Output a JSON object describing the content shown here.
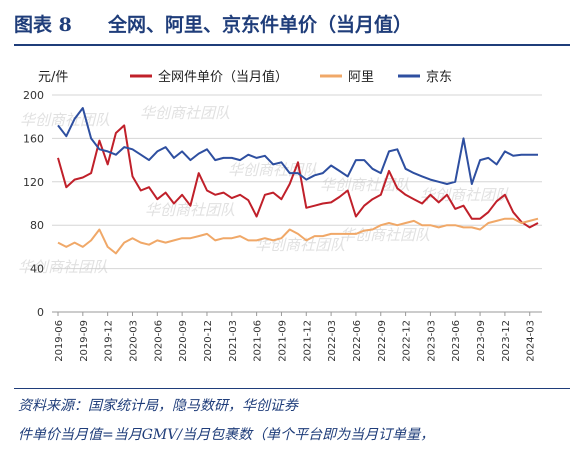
{
  "header": {
    "figure_label": "图表 8",
    "title": "全网、阿里、京东件单价（当月值）"
  },
  "footer": {
    "source": "资料来源：国家统计局，隐马数研，华创证券",
    "note": "件单价当月值=当月GMV/当月包裹数（单个平台即为当月订单量，"
  },
  "watermark": "华创商社团队",
  "chart_data": {
    "type": "line",
    "unit_label": "元/件",
    "ylim": [
      0,
      200
    ],
    "y_ticks": [
      0,
      40,
      80,
      120,
      160,
      200
    ],
    "x_tick_labels": [
      "2019-06",
      "2019-09",
      "2019-12",
      "2020-03",
      "2020-06",
      "2020-09",
      "2020-12",
      "2021-03",
      "2021-06",
      "2021-09",
      "2021-12",
      "2022-03",
      "2022-06",
      "2022-09",
      "2022-12",
      "2023-03",
      "2023-06",
      "2023-09",
      "2023-12",
      "2024-03"
    ],
    "x": [
      "2019-06",
      "2019-07",
      "2019-08",
      "2019-09",
      "2019-10",
      "2019-11",
      "2019-12",
      "2020-01",
      "2020-02",
      "2020-03",
      "2020-04",
      "2020-05",
      "2020-06",
      "2020-07",
      "2020-08",
      "2020-09",
      "2020-10",
      "2020-11",
      "2020-12",
      "2021-01",
      "2021-02",
      "2021-03",
      "2021-04",
      "2021-05",
      "2021-06",
      "2021-07",
      "2021-08",
      "2021-09",
      "2021-10",
      "2021-11",
      "2021-12",
      "2022-01",
      "2022-02",
      "2022-03",
      "2022-04",
      "2022-05",
      "2022-06",
      "2022-07",
      "2022-08",
      "2022-09",
      "2022-10",
      "2022-11",
      "2022-12",
      "2023-01",
      "2023-02",
      "2023-03",
      "2023-04",
      "2023-05",
      "2023-06",
      "2023-07",
      "2023-08",
      "2023-09",
      "2023-10",
      "2023-11",
      "2023-12",
      "2024-01",
      "2024-02",
      "2024-03",
      "2024-04"
    ],
    "legend_position": "top",
    "series": [
      {
        "name": "全网件单价（当月值）",
        "color": "#c0202a",
        "values": [
          142,
          115,
          122,
          124,
          128,
          158,
          136,
          165,
          172,
          125,
          112,
          115,
          104,
          110,
          100,
          108,
          98,
          128,
          112,
          108,
          110,
          105,
          108,
          103,
          88,
          108,
          110,
          104,
          118,
          138,
          96,
          98,
          100,
          101,
          106,
          112,
          88,
          98,
          104,
          108,
          130,
          114,
          108,
          104,
          100,
          108,
          101,
          108,
          95,
          98,
          86,
          86,
          92,
          102,
          108,
          92,
          83,
          78,
          82
        ]
      },
      {
        "name": "阿里",
        "color": "#f0a868",
        "values": [
          64,
          60,
          64,
          60,
          66,
          76,
          60,
          54,
          64,
          68,
          64,
          62,
          66,
          64,
          66,
          68,
          68,
          70,
          72,
          66,
          68,
          68,
          70,
          66,
          66,
          68,
          66,
          68,
          76,
          72,
          66,
          70,
          70,
          72,
          72,
          72,
          72,
          75,
          76,
          80,
          82,
          80,
          82,
          84,
          80,
          80,
          78,
          80,
          80,
          78,
          78,
          76,
          82,
          84,
          86,
          86,
          82,
          84,
          86
        ]
      },
      {
        "name": "京东",
        "color": "#2e4fa0",
        "values": [
          172,
          162,
          178,
          188,
          160,
          150,
          148,
          145,
          152,
          150,
          145,
          140,
          148,
          152,
          142,
          148,
          140,
          146,
          150,
          140,
          142,
          142,
          140,
          145,
          142,
          144,
          136,
          138,
          128,
          128,
          122,
          126,
          128,
          135,
          130,
          125,
          140,
          140,
          132,
          128,
          148,
          150,
          132,
          128,
          125,
          122,
          120,
          118,
          120,
          160,
          118,
          140,
          142,
          136,
          148,
          144,
          145,
          145,
          145
        ]
      }
    ]
  }
}
